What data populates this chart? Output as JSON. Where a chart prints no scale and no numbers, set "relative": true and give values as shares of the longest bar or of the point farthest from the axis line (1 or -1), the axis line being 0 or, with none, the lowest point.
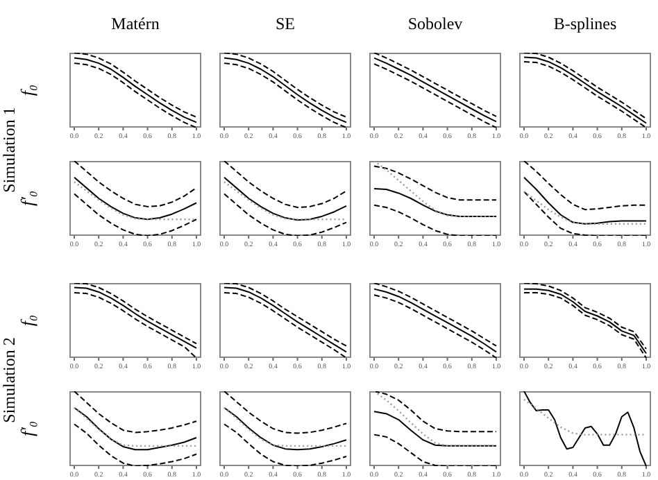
{
  "chart_data": [
    {
      "type": "line",
      "title": "Matérn",
      "ylabel": "f₀",
      "annotations": [
        "Simulation 1"
      ],
      "relative": true,
      "xlim": [
        -0.04,
        1.04
      ],
      "xticks": [
        {
          "value": 0,
          "label": "0.0"
        },
        {
          "value": 0.2,
          "label": "0.2"
        },
        {
          "value": 0.4,
          "label": "0.4"
        },
        {
          "value": 0.6,
          "label": "0.6"
        },
        {
          "value": 0.8,
          "label": "0.8"
        },
        {
          "value": 1,
          "label": "1.0"
        }
      ],
      "x": [
        0,
        0.1,
        0.2,
        0.3,
        0.4,
        0.5,
        0.6,
        0.7,
        0.8,
        0.9,
        1
      ],
      "series": [
        {
          "color": "#000000",
          "line_style": "dashed",
          "values": [
            1,
            0.98,
            0.93,
            0.85,
            0.74,
            0.62,
            0.51,
            0.4,
            0.3,
            0.21,
            0.14
          ]
        },
        {
          "color": "#000000",
          "line_style": "solid",
          "values": [
            0.93,
            0.91,
            0.86,
            0.78,
            0.67,
            0.55,
            0.44,
            0.33,
            0.23,
            0.14,
            0.07
          ]
        },
        {
          "color": "#000000",
          "line_style": "dashed",
          "values": [
            0.86,
            0.84,
            0.79,
            0.71,
            0.6,
            0.48,
            0.37,
            0.26,
            0.16,
            0.07,
            0
          ]
        }
      ]
    },
    {
      "type": "line",
      "title": "SE",
      "relative": true,
      "xlim": [
        -0.04,
        1.04
      ],
      "xticks": [
        {
          "value": 0,
          "label": "0.0"
        },
        {
          "value": 0.2,
          "label": "0.2"
        },
        {
          "value": 0.4,
          "label": "0.4"
        },
        {
          "value": 0.6,
          "label": "0.6"
        },
        {
          "value": 0.8,
          "label": "0.8"
        },
        {
          "value": 1,
          "label": "1.0"
        }
      ],
      "x": [
        0,
        0.1,
        0.2,
        0.3,
        0.4,
        0.5,
        0.6,
        0.7,
        0.8,
        0.9,
        1
      ],
      "series": [
        {
          "color": "#000000",
          "line_style": "dashed",
          "values": [
            1,
            0.98,
            0.93,
            0.85,
            0.75,
            0.63,
            0.51,
            0.4,
            0.3,
            0.21,
            0.14
          ]
        },
        {
          "color": "#000000",
          "line_style": "solid",
          "values": [
            0.93,
            0.91,
            0.86,
            0.78,
            0.68,
            0.56,
            0.44,
            0.33,
            0.23,
            0.14,
            0.07
          ]
        },
        {
          "color": "#000000",
          "line_style": "dashed",
          "values": [
            0.86,
            0.84,
            0.79,
            0.71,
            0.61,
            0.49,
            0.37,
            0.26,
            0.16,
            0.07,
            0
          ]
        }
      ]
    },
    {
      "type": "line",
      "title": "Sobolev",
      "relative": true,
      "xlim": [
        -0.04,
        1.04
      ],
      "xticks": [
        {
          "value": 0,
          "label": "0.0"
        },
        {
          "value": 0.2,
          "label": "0.2"
        },
        {
          "value": 0.4,
          "label": "0.4"
        },
        {
          "value": 0.6,
          "label": "0.6"
        },
        {
          "value": 0.8,
          "label": "0.8"
        },
        {
          "value": 1,
          "label": "1.0"
        }
      ],
      "x": [
        0,
        0.1,
        0.2,
        0.3,
        0.4,
        0.5,
        0.6,
        0.7,
        0.8,
        0.9,
        1
      ],
      "series": [
        {
          "color": "#000000",
          "line_style": "dashed",
          "values": [
            1,
            0.93,
            0.85,
            0.77,
            0.68,
            0.59,
            0.5,
            0.41,
            0.32,
            0.23,
            0.15
          ]
        },
        {
          "color": "#000000",
          "line_style": "solid",
          "values": [
            0.93,
            0.86,
            0.78,
            0.7,
            0.61,
            0.52,
            0.43,
            0.34,
            0.25,
            0.16,
            0.08
          ]
        },
        {
          "color": "#000000",
          "line_style": "dashed",
          "values": [
            0.85,
            0.78,
            0.7,
            0.62,
            0.53,
            0.44,
            0.35,
            0.26,
            0.17,
            0.08,
            0
          ]
        }
      ]
    },
    {
      "type": "line",
      "title": "B-splines",
      "relative": true,
      "xlim": [
        -0.04,
        1.04
      ],
      "xticks": [
        {
          "value": 0,
          "label": "0.0"
        },
        {
          "value": 0.2,
          "label": "0.2"
        },
        {
          "value": 0.4,
          "label": "0.4"
        },
        {
          "value": 0.6,
          "label": "0.6"
        },
        {
          "value": 0.8,
          "label": "0.8"
        },
        {
          "value": 1,
          "label": "1.0"
        }
      ],
      "x": [
        0,
        0.1,
        0.2,
        0.3,
        0.4,
        0.5,
        0.6,
        0.7,
        0.8,
        0.9,
        1
      ],
      "series": [
        {
          "color": "#000000",
          "line_style": "dashed",
          "values": [
            1,
            0.99,
            0.94,
            0.86,
            0.76,
            0.65,
            0.54,
            0.44,
            0.34,
            0.23,
            0.12
          ]
        },
        {
          "color": "#000000",
          "line_style": "solid",
          "values": [
            0.94,
            0.93,
            0.88,
            0.8,
            0.7,
            0.59,
            0.48,
            0.38,
            0.28,
            0.17,
            0.06
          ]
        },
        {
          "color": "#000000",
          "line_style": "dashed",
          "values": [
            0.88,
            0.87,
            0.82,
            0.74,
            0.64,
            0.53,
            0.42,
            0.32,
            0.22,
            0.11,
            0
          ]
        }
      ]
    },
    {
      "type": "line",
      "ylabel": "f′₀",
      "relative": true,
      "xlim": [
        -0.04,
        1.04
      ],
      "xticks": [
        {
          "value": 0,
          "label": "0.0"
        },
        {
          "value": 0.2,
          "label": "0.2"
        },
        {
          "value": 0.4,
          "label": "0.4"
        },
        {
          "value": 0.6,
          "label": "0.6"
        },
        {
          "value": 0.8,
          "label": "0.8"
        },
        {
          "value": 1,
          "label": "1.0"
        }
      ],
      "x": [
        0,
        0.1,
        0.2,
        0.3,
        0.4,
        0.5,
        0.6,
        0.7,
        0.8,
        0.9,
        1
      ],
      "series": [
        {
          "color": "#999999",
          "line_style": "dotted",
          "values": [
            0.72,
            0.6,
            0.48,
            0.37,
            0.28,
            0.23,
            0.22,
            0.22,
            0.22,
            0.22,
            0.22
          ]
        },
        {
          "color": "#000000",
          "line_style": "dashed",
          "values": [
            1,
            0.86,
            0.72,
            0.6,
            0.5,
            0.42,
            0.39,
            0.4,
            0.45,
            0.53,
            0.64
          ]
        },
        {
          "color": "#000000",
          "line_style": "solid",
          "values": [
            0.78,
            0.64,
            0.5,
            0.39,
            0.3,
            0.24,
            0.22,
            0.24,
            0.29,
            0.36,
            0.44
          ]
        },
        {
          "color": "#000000",
          "line_style": "dashed",
          "values": [
            0.56,
            0.42,
            0.28,
            0.17,
            0.08,
            0.02,
            0,
            0.02,
            0.07,
            0.14,
            0.22
          ]
        }
      ]
    },
    {
      "type": "line",
      "relative": true,
      "xlim": [
        -0.04,
        1.04
      ],
      "xticks": [
        {
          "value": 0,
          "label": "0.0"
        },
        {
          "value": 0.2,
          "label": "0.2"
        },
        {
          "value": 0.4,
          "label": "0.4"
        },
        {
          "value": 0.6,
          "label": "0.6"
        },
        {
          "value": 0.8,
          "label": "0.8"
        },
        {
          "value": 1,
          "label": "1.0"
        }
      ],
      "x": [
        0,
        0.1,
        0.2,
        0.3,
        0.4,
        0.5,
        0.6,
        0.7,
        0.8,
        0.9,
        1
      ],
      "series": [
        {
          "color": "#999999",
          "line_style": "dotted",
          "values": [
            0.72,
            0.6,
            0.48,
            0.37,
            0.28,
            0.23,
            0.22,
            0.22,
            0.22,
            0.22,
            0.22
          ]
        },
        {
          "color": "#000000",
          "line_style": "dashed",
          "values": [
            1,
            0.86,
            0.72,
            0.6,
            0.5,
            0.42,
            0.38,
            0.39,
            0.43,
            0.5,
            0.6
          ]
        },
        {
          "color": "#000000",
          "line_style": "solid",
          "values": [
            0.78,
            0.64,
            0.5,
            0.39,
            0.3,
            0.24,
            0.21,
            0.22,
            0.26,
            0.32,
            0.4
          ]
        },
        {
          "color": "#000000",
          "line_style": "dashed",
          "values": [
            0.56,
            0.42,
            0.28,
            0.17,
            0.08,
            0.02,
            0,
            0.01,
            0.05,
            0.11,
            0.18
          ]
        }
      ]
    },
    {
      "type": "line",
      "relative": true,
      "xlim": [
        -0.04,
        1.04
      ],
      "xticks": [
        {
          "value": 0,
          "label": "0.0"
        },
        {
          "value": 0.2,
          "label": "0.2"
        },
        {
          "value": 0.4,
          "label": "0.4"
        },
        {
          "value": 0.6,
          "label": "0.6"
        },
        {
          "value": 0.8,
          "label": "0.8"
        },
        {
          "value": 1,
          "label": "1.0"
        }
      ],
      "x": [
        0,
        0.1,
        0.2,
        0.3,
        0.4,
        0.5,
        0.6,
        0.7,
        0.8,
        0.9,
        1
      ],
      "series": [
        {
          "color": "#999999",
          "line_style": "dotted",
          "values": [
            1,
            0.88,
            0.74,
            0.6,
            0.46,
            0.34,
            0.27,
            0.26,
            0.26,
            0.26,
            0.26
          ]
        },
        {
          "color": "#000000",
          "line_style": "dashed",
          "values": [
            0.93,
            0.9,
            0.84,
            0.76,
            0.67,
            0.58,
            0.51,
            0.48,
            0.48,
            0.48,
            0.48
          ]
        },
        {
          "color": "#000000",
          "line_style": "solid",
          "values": [
            0.63,
            0.62,
            0.57,
            0.5,
            0.41,
            0.33,
            0.28,
            0.26,
            0.26,
            0.26,
            0.26
          ]
        },
        {
          "color": "#000000",
          "line_style": "dashed",
          "values": [
            0.41,
            0.38,
            0.32,
            0.24,
            0.15,
            0.07,
            0.02,
            0,
            0,
            0,
            0
          ]
        }
      ]
    },
    {
      "type": "line",
      "relative": true,
      "xlim": [
        -0.04,
        1.04
      ],
      "xticks": [
        {
          "value": 0,
          "label": "0.0"
        },
        {
          "value": 0.2,
          "label": "0.2"
        },
        {
          "value": 0.4,
          "label": "0.4"
        },
        {
          "value": 0.6,
          "label": "0.6"
        },
        {
          "value": 0.8,
          "label": "0.8"
        },
        {
          "value": 1,
          "label": "1.0"
        }
      ],
      "x": [
        0,
        0.1,
        0.2,
        0.3,
        0.4,
        0.5,
        0.6,
        0.7,
        0.8,
        0.9,
        1
      ],
      "series": [
        {
          "color": "#999999",
          "line_style": "dotted",
          "values": [
            0.59,
            0.47,
            0.35,
            0.25,
            0.18,
            0.16,
            0.16,
            0.16,
            0.16,
            0.16,
            0.16
          ]
        },
        {
          "color": "#000000",
          "line_style": "dashed",
          "values": [
            1,
            0.86,
            0.7,
            0.55,
            0.42,
            0.35,
            0.36,
            0.38,
            0.4,
            0.41,
            0.41
          ]
        },
        {
          "color": "#000000",
          "line_style": "solid",
          "values": [
            0.78,
            0.62,
            0.44,
            0.28,
            0.18,
            0.16,
            0.17,
            0.19,
            0.2,
            0.2,
            0.2
          ]
        },
        {
          "color": "#000000",
          "line_style": "dashed",
          "values": [
            0.59,
            0.42,
            0.25,
            0.1,
            0.03,
            0.01,
            0,
            0,
            0,
            0,
            0
          ]
        }
      ]
    },
    {
      "type": "line",
      "ylabel": "f₀",
      "annotations": [
        "Simulation 2"
      ],
      "relative": true,
      "xlim": [
        -0.04,
        1.04
      ],
      "xticks": [
        {
          "value": 0,
          "label": "0.0"
        },
        {
          "value": 0.2,
          "label": "0.2"
        },
        {
          "value": 0.4,
          "label": "0.4"
        },
        {
          "value": 0.6,
          "label": "0.6"
        },
        {
          "value": 0.8,
          "label": "0.8"
        },
        {
          "value": 1,
          "label": "1.0"
        }
      ],
      "x": [
        0,
        0.1,
        0.2,
        0.3,
        0.4,
        0.5,
        0.6,
        0.7,
        0.8,
        0.9,
        1
      ],
      "series": [
        {
          "color": "#000000",
          "line_style": "dashed",
          "values": [
            1,
            0.99,
            0.94,
            0.86,
            0.76,
            0.65,
            0.55,
            0.46,
            0.37,
            0.28,
            0.19
          ]
        },
        {
          "color": "#000000",
          "line_style": "solid",
          "values": [
            0.94,
            0.93,
            0.88,
            0.8,
            0.7,
            0.59,
            0.49,
            0.4,
            0.31,
            0.22,
            0.13
          ]
        },
        {
          "color": "#000000",
          "line_style": "dashed",
          "values": [
            0.87,
            0.86,
            0.81,
            0.73,
            0.63,
            0.52,
            0.42,
            0.33,
            0.24,
            0.15,
            0
          ]
        }
      ]
    },
    {
      "type": "line",
      "relative": true,
      "xlim": [
        -0.04,
        1.04
      ],
      "xticks": [
        {
          "value": 0,
          "label": "0.0"
        },
        {
          "value": 0.2,
          "label": "0.2"
        },
        {
          "value": 0.4,
          "label": "0.4"
        },
        {
          "value": 0.6,
          "label": "0.6"
        },
        {
          "value": 0.8,
          "label": "0.8"
        },
        {
          "value": 1,
          "label": "1.0"
        }
      ],
      "x": [
        0,
        0.1,
        0.2,
        0.3,
        0.4,
        0.5,
        0.6,
        0.7,
        0.8,
        0.9,
        1
      ],
      "series": [
        {
          "color": "#000000",
          "line_style": "dashed",
          "values": [
            1,
            0.99,
            0.94,
            0.86,
            0.76,
            0.65,
            0.55,
            0.45,
            0.35,
            0.25,
            0.16
          ]
        },
        {
          "color": "#000000",
          "line_style": "solid",
          "values": [
            0.94,
            0.93,
            0.88,
            0.8,
            0.7,
            0.59,
            0.48,
            0.38,
            0.28,
            0.18,
            0.08
          ]
        },
        {
          "color": "#000000",
          "line_style": "dashed",
          "values": [
            0.87,
            0.86,
            0.81,
            0.73,
            0.63,
            0.52,
            0.41,
            0.31,
            0.21,
            0.11,
            0
          ]
        }
      ]
    },
    {
      "type": "line",
      "relative": true,
      "xlim": [
        -0.04,
        1.04
      ],
      "xticks": [
        {
          "value": 0,
          "label": "0.0"
        },
        {
          "value": 0.2,
          "label": "0.2"
        },
        {
          "value": 0.4,
          "label": "0.4"
        },
        {
          "value": 0.6,
          "label": "0.6"
        },
        {
          "value": 0.8,
          "label": "0.8"
        },
        {
          "value": 1,
          "label": "1.0"
        }
      ],
      "x": [
        0,
        0.1,
        0.2,
        0.3,
        0.4,
        0.5,
        0.6,
        0.7,
        0.8,
        0.9,
        1
      ],
      "series": [
        {
          "color": "#000000",
          "line_style": "dashed",
          "values": [
            1,
            0.95,
            0.89,
            0.81,
            0.72,
            0.63,
            0.54,
            0.45,
            0.36,
            0.26,
            0.16
          ]
        },
        {
          "color": "#000000",
          "line_style": "solid",
          "values": [
            0.92,
            0.88,
            0.82,
            0.74,
            0.65,
            0.56,
            0.47,
            0.38,
            0.29,
            0.19,
            0.08
          ]
        },
        {
          "color": "#000000",
          "line_style": "dashed",
          "values": [
            0.84,
            0.8,
            0.74,
            0.66,
            0.57,
            0.48,
            0.39,
            0.3,
            0.21,
            0.11,
            0
          ]
        }
      ]
    },
    {
      "type": "line",
      "relative": true,
      "xlim": [
        -0.04,
        1.04
      ],
      "xticks": [
        {
          "value": 0,
          "label": "0.0"
        },
        {
          "value": 0.2,
          "label": "0.2"
        },
        {
          "value": 0.4,
          "label": "0.4"
        },
        {
          "value": 0.6,
          "label": "0.6"
        },
        {
          "value": 0.8,
          "label": "0.8"
        },
        {
          "value": 1,
          "label": "1.0"
        }
      ],
      "x": [
        0,
        0.1,
        0.2,
        0.3,
        0.4,
        0.5,
        0.6,
        0.7,
        0.8,
        0.9,
        1
      ],
      "series": [
        {
          "color": "#000000",
          "line_style": "dashed",
          "values": [
            1,
            0.99,
            0.96,
            0.9,
            0.8,
            0.67,
            0.61,
            0.53,
            0.41,
            0.35,
            0.12
          ]
        },
        {
          "color": "#000000",
          "line_style": "solid",
          "values": [
            0.92,
            0.92,
            0.9,
            0.85,
            0.75,
            0.62,
            0.56,
            0.48,
            0.36,
            0.3,
            0.06
          ]
        },
        {
          "color": "#000000",
          "line_style": "dashed",
          "values": [
            0.87,
            0.87,
            0.85,
            0.8,
            0.7,
            0.57,
            0.51,
            0.43,
            0.31,
            0.25,
            0
          ]
        }
      ]
    },
    {
      "type": "line",
      "ylabel": "f′₀",
      "relative": true,
      "xlim": [
        -0.04,
        1.04
      ],
      "xticks": [
        {
          "value": 0,
          "label": "0.0"
        },
        {
          "value": 0.2,
          "label": "0.2"
        },
        {
          "value": 0.4,
          "label": "0.4"
        },
        {
          "value": 0.6,
          "label": "0.6"
        },
        {
          "value": 0.8,
          "label": "0.8"
        },
        {
          "value": 1,
          "label": "1.0"
        }
      ],
      "x": [
        0,
        0.1,
        0.2,
        0.3,
        0.4,
        0.5,
        0.6,
        0.7,
        0.8,
        0.9,
        1
      ],
      "series": [
        {
          "color": "#999999",
          "line_style": "dotted",
          "values": [
            0.78,
            0.64,
            0.49,
            0.36,
            0.28,
            0.27,
            0.27,
            0.27,
            0.27,
            0.27,
            0.27
          ]
        },
        {
          "color": "#000000",
          "line_style": "dashed",
          "values": [
            1,
            0.85,
            0.7,
            0.58,
            0.48,
            0.45,
            0.46,
            0.48,
            0.51,
            0.55,
            0.6
          ]
        },
        {
          "color": "#000000",
          "line_style": "solid",
          "values": [
            0.78,
            0.66,
            0.5,
            0.36,
            0.26,
            0.22,
            0.22,
            0.25,
            0.28,
            0.32,
            0.38
          ]
        },
        {
          "color": "#000000",
          "line_style": "dashed",
          "values": [
            0.56,
            0.44,
            0.28,
            0.14,
            0.04,
            0,
            0.01,
            0.03,
            0.06,
            0.1,
            0.16
          ]
        }
      ]
    },
    {
      "type": "line",
      "relative": true,
      "xlim": [
        -0.04,
        1.04
      ],
      "xticks": [
        {
          "value": 0,
          "label": "0.0"
        },
        {
          "value": 0.2,
          "label": "0.2"
        },
        {
          "value": 0.4,
          "label": "0.4"
        },
        {
          "value": 0.6,
          "label": "0.6"
        },
        {
          "value": 0.8,
          "label": "0.8"
        },
        {
          "value": 1,
          "label": "1.0"
        }
      ],
      "x": [
        0,
        0.1,
        0.2,
        0.3,
        0.4,
        0.5,
        0.6,
        0.7,
        0.8,
        0.9,
        1
      ],
      "series": [
        {
          "color": "#999999",
          "line_style": "dotted",
          "values": [
            0.78,
            0.64,
            0.49,
            0.36,
            0.28,
            0.27,
            0.27,
            0.27,
            0.27,
            0.27,
            0.27
          ]
        },
        {
          "color": "#000000",
          "line_style": "dashed",
          "values": [
            1,
            0.86,
            0.72,
            0.6,
            0.5,
            0.45,
            0.44,
            0.45,
            0.48,
            0.52,
            0.57
          ]
        },
        {
          "color": "#000000",
          "line_style": "solid",
          "values": [
            0.78,
            0.66,
            0.51,
            0.38,
            0.28,
            0.23,
            0.22,
            0.23,
            0.26,
            0.3,
            0.35
          ]
        },
        {
          "color": "#000000",
          "line_style": "dashed",
          "values": [
            0.56,
            0.45,
            0.3,
            0.16,
            0.06,
            0.01,
            0,
            0.01,
            0.04,
            0.08,
            0.13
          ]
        }
      ]
    },
    {
      "type": "line",
      "relative": true,
      "xlim": [
        -0.04,
        1.04
      ],
      "xticks": [
        {
          "value": 0,
          "label": "0.0"
        },
        {
          "value": 0.2,
          "label": "0.2"
        },
        {
          "value": 0.4,
          "label": "0.4"
        },
        {
          "value": 0.6,
          "label": "0.6"
        },
        {
          "value": 0.8,
          "label": "0.8"
        },
        {
          "value": 1,
          "label": "1.0"
        }
      ],
      "x": [
        0,
        0.1,
        0.2,
        0.3,
        0.4,
        0.5,
        0.6,
        0.7,
        0.8,
        0.9,
        1
      ],
      "series": [
        {
          "color": "#999999",
          "line_style": "dotted",
          "values": [
            1,
            0.88,
            0.74,
            0.58,
            0.43,
            0.31,
            0.27,
            0.27,
            0.27,
            0.27,
            0.27
          ]
        },
        {
          "color": "#000000",
          "line_style": "dashed",
          "values": [
            1,
            0.96,
            0.88,
            0.75,
            0.6,
            0.5,
            0.47,
            0.46,
            0.46,
            0.46,
            0.46
          ]
        },
        {
          "color": "#000000",
          "line_style": "solid",
          "values": [
            0.73,
            0.7,
            0.62,
            0.48,
            0.35,
            0.28,
            0.27,
            0.27,
            0.27,
            0.27,
            0.27
          ]
        },
        {
          "color": "#000000",
          "line_style": "dashed",
          "values": [
            0.42,
            0.39,
            0.3,
            0.18,
            0.06,
            0.01,
            0,
            0,
            0,
            0,
            0
          ]
        }
      ]
    },
    {
      "type": "line",
      "relative": true,
      "xlim": [
        -0.04,
        1.04
      ],
      "xticks": [
        {
          "value": 0,
          "label": "0.0"
        },
        {
          "value": 0.2,
          "label": "0.2"
        },
        {
          "value": 0.4,
          "label": "0.4"
        },
        {
          "value": 0.6,
          "label": "0.6"
        },
        {
          "value": 0.8,
          "label": "0.8"
        },
        {
          "value": 1,
          "label": "1.0"
        }
      ],
      "x": [
        0,
        0.1,
        0.2,
        0.3,
        0.4,
        0.5,
        0.6,
        0.7,
        0.8,
        0.9,
        1
      ],
      "series": [
        {
          "color": "#999999",
          "line_style": "dotted",
          "values": [
            0.89,
            0.77,
            0.64,
            0.52,
            0.44,
            0.42,
            0.42,
            0.42,
            0.42,
            0.42,
            0.42
          ]
        },
        {
          "color": "#000000",
          "line_style": "solid",
          "x": [
            0,
            0.05,
            0.1,
            0.15,
            0.2,
            0.25,
            0.3,
            0.35,
            0.4,
            0.45,
            0.5,
            0.55,
            0.6,
            0.65,
            0.7,
            0.75,
            0.8,
            0.85,
            0.9,
            0.95,
            1
          ],
          "values": [
            1,
            0.85,
            0.74,
            0.75,
            0.75,
            0.62,
            0.38,
            0.23,
            0.25,
            0.38,
            0.51,
            0.53,
            0.43,
            0.28,
            0.28,
            0.43,
            0.66,
            0.72,
            0.51,
            0.19,
            0
          ]
        }
      ]
    }
  ]
}
